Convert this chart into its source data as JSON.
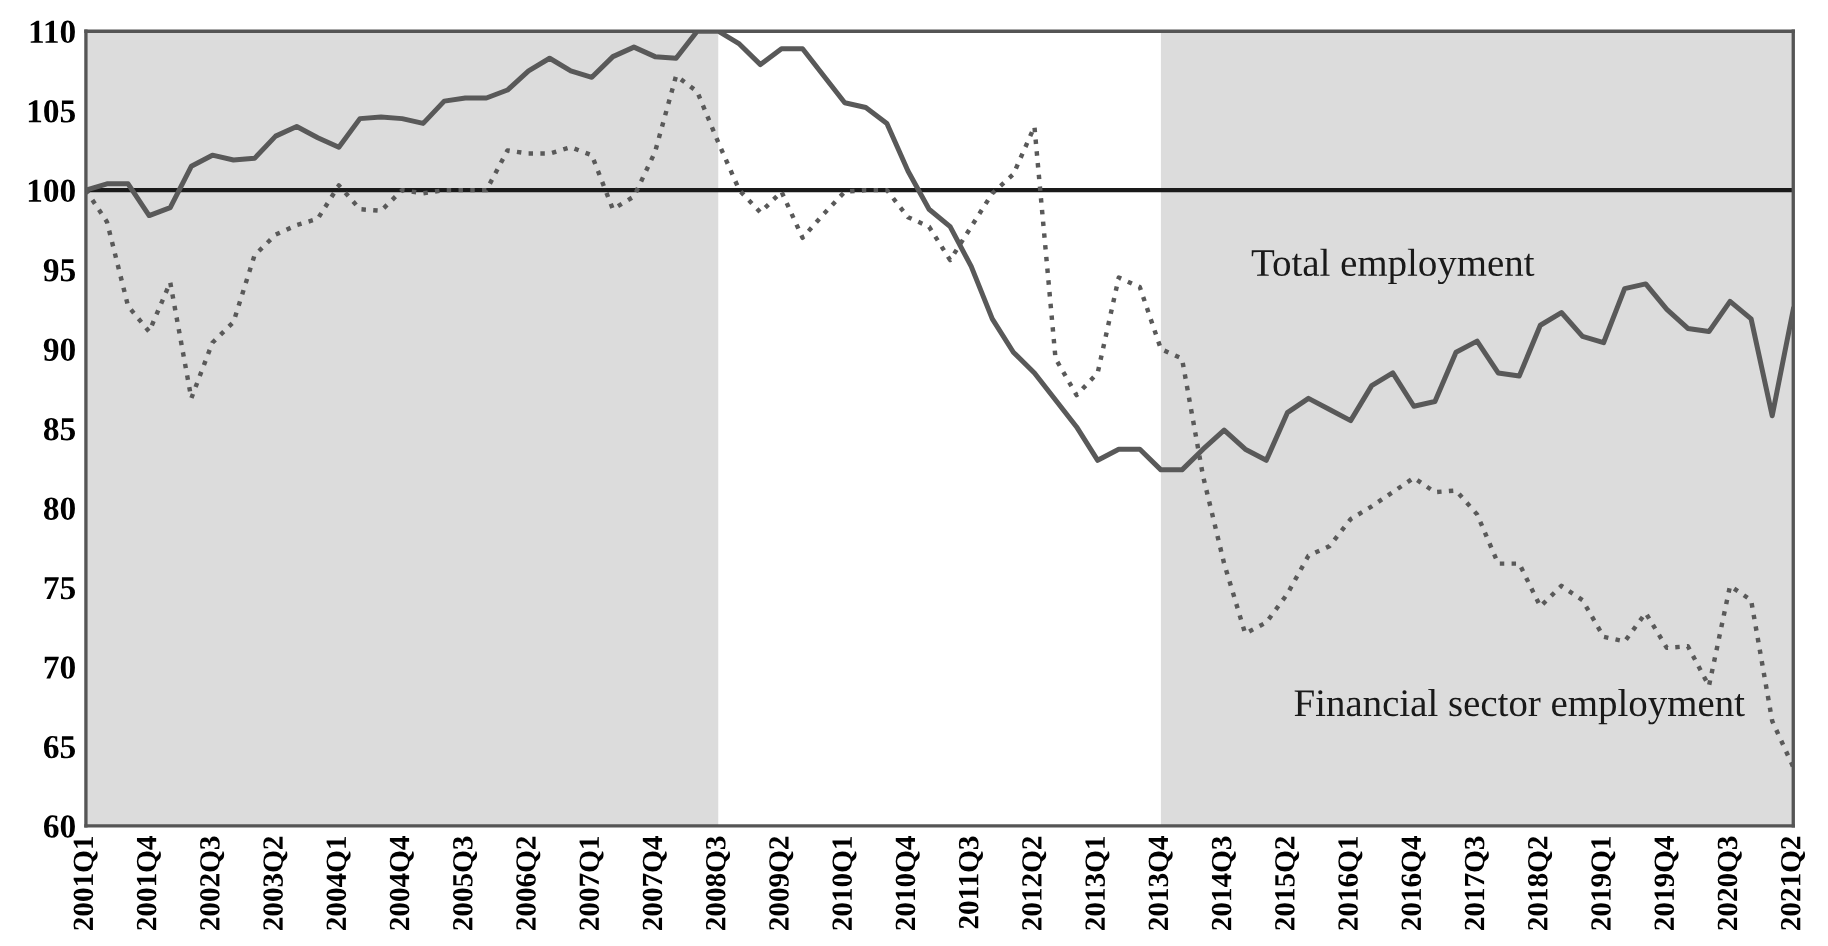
{
  "chart_data": {
    "type": "line",
    "categories": [
      "2001Q1",
      null,
      null,
      "2001Q4",
      null,
      null,
      "2002Q3",
      null,
      null,
      "2003Q2",
      null,
      null,
      "2004Q1",
      null,
      null,
      "2004Q4",
      null,
      null,
      "2005Q3",
      null,
      null,
      "2006Q2",
      null,
      null,
      "2007Q1",
      null,
      null,
      "2007Q4",
      null,
      null,
      "2008Q3",
      null,
      null,
      "2009Q2",
      null,
      null,
      "2010Q1",
      null,
      null,
      "2010Q4",
      null,
      null,
      "2011Q3",
      null,
      null,
      "2012Q2",
      null,
      null,
      "2013Q1",
      null,
      null,
      "2013Q4",
      null,
      null,
      "2014Q3",
      null,
      null,
      "2015Q2",
      null,
      null,
      "2016Q1",
      null,
      null,
      "2016Q4",
      null,
      null,
      "2017Q3",
      null,
      null,
      "2018Q2",
      null,
      null,
      "2019Q1",
      null,
      null,
      "2019Q4",
      null,
      null,
      "2020Q3",
      null,
      null,
      "2021Q2"
    ],
    "series": [
      {
        "name": "Total employment",
        "color": "#595959",
        "line_style": "solid",
        "values": [
          100,
          100.4,
          100.4,
          98.4,
          98.9,
          101.5,
          102.2,
          101.9,
          102.0,
          103.4,
          104.0,
          103.3,
          102.7,
          104.5,
          104.6,
          104.5,
          104.2,
          105.6,
          105.8,
          105.8,
          106.3,
          107.5,
          108.3,
          107.5,
          107.1,
          108.4,
          109.0,
          108.4,
          108.3,
          110.0,
          110.0,
          109.2,
          107.9,
          108.9,
          108.9,
          107.2,
          105.5,
          105.2,
          104.2,
          101.2,
          98.8,
          97.7,
          95.2,
          91.9,
          89.8,
          88.5,
          86.8,
          85.1,
          83.0,
          83.7,
          83.7,
          82.4,
          82.4,
          83.7,
          84.9,
          83.7,
          83.0,
          86.0,
          86.9,
          86.2,
          85.5,
          87.7,
          88.5,
          86.4,
          86.7,
          89.8,
          90.5,
          88.5,
          88.3,
          91.5,
          92.3,
          90.8,
          90.4,
          93.8,
          94.1,
          92.5,
          91.3,
          91.1,
          93.0,
          91.9,
          85.8,
          92.5
        ]
      },
      {
        "name": "Financial sector employment",
        "color": "#595959",
        "line_style": "dotted",
        "values": [
          100,
          98.0,
          92.7,
          91.1,
          94.2,
          86.9,
          90.4,
          91.7,
          95.9,
          97.2,
          97.8,
          98.2,
          100.3,
          98.8,
          98.7,
          100.0,
          99.8,
          100.0,
          100.0,
          100.0,
          102.5,
          102.3,
          102.3,
          102.7,
          102.2,
          98.8,
          99.6,
          102.4,
          107.2,
          106.2,
          103.0,
          100.0,
          98.6,
          99.9,
          97.0,
          98.5,
          99.9,
          100.0,
          100.0,
          98.3,
          97.7,
          95.6,
          97.7,
          99.8,
          101.0,
          104.0,
          89.4,
          87.1,
          88.5,
          94.5,
          93.9,
          90.0,
          89.4,
          82.0,
          76.5,
          72.1,
          72.8,
          74.6,
          77.0,
          77.6,
          79.3,
          80.1,
          81.0,
          81.9,
          81.0,
          81.1,
          79.6,
          76.5,
          76.5,
          73.8,
          75.1,
          74.2,
          71.9,
          71.6,
          73.4,
          71.2,
          71.3,
          68.8,
          75.1,
          74.2,
          66.6,
          63.7
        ]
      }
    ],
    "ylim": [
      60,
      110
    ],
    "yticks": [
      60,
      65,
      70,
      75,
      80,
      85,
      90,
      95,
      100,
      105,
      110
    ],
    "ref_lines": [
      {
        "axis": "y",
        "value": 100,
        "color": "#1a1a1a",
        "line_style": "solid"
      }
    ],
    "bands": [
      {
        "axis": "x",
        "from": "2001Q1",
        "to": "2008Q3",
        "color": "#dcdcdc"
      },
      {
        "axis": "x",
        "from": "2013Q4",
        "to": "2021Q2",
        "color": "#dcdcdc"
      }
    ],
    "grid": false,
    "legend": false
  }
}
